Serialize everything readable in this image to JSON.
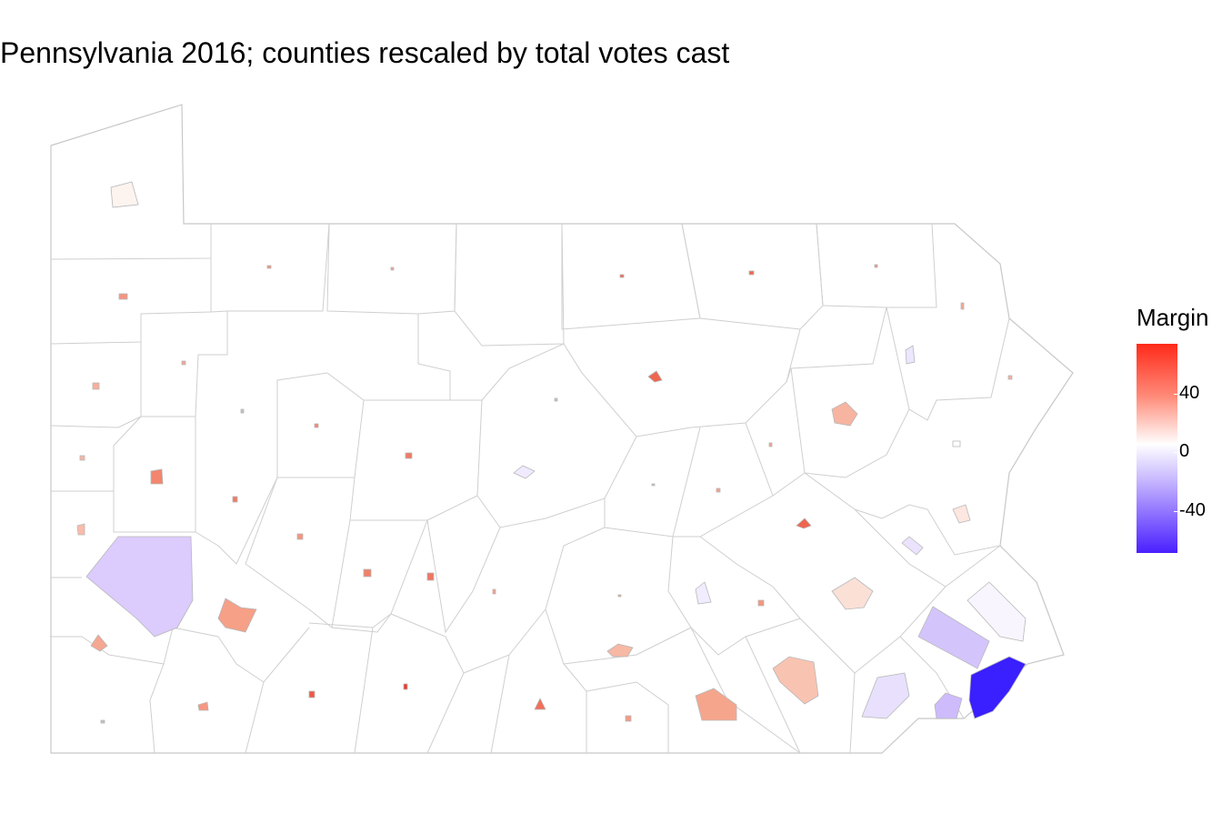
{
  "title": "Pennsylvania 2016; counties rescaled by total votes cast",
  "legend": {
    "title": "Margin",
    "ticks": [
      "40",
      "0",
      "-40"
    ]
  },
  "colors": {
    "strong_red": "#e8584a",
    "mid_red": "#f4a08c",
    "light_red": "#fbd9cd",
    "very_light_red": "#fdf0ea",
    "light_blue": "#e8e0fd",
    "mid_blue": "#d4c4fc",
    "strong_blue": "#3a1fff",
    "outline": "#bdbdbd"
  }
}
